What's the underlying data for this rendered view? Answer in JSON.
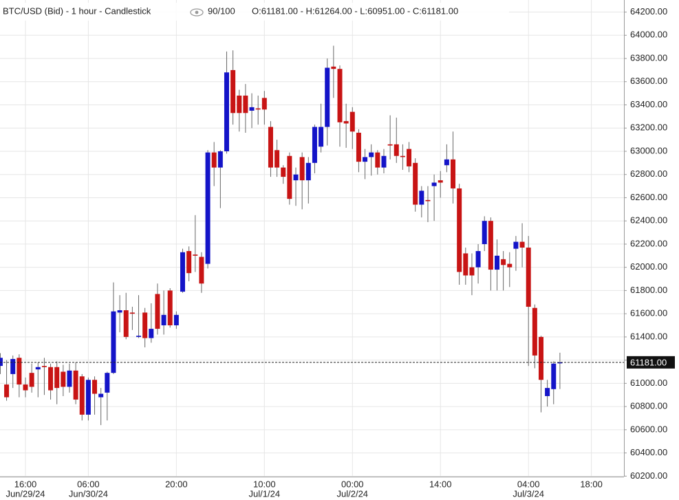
{
  "chart_data": {
    "type": "candlestick",
    "title": "BTC/USD (Bid) - 1 hour - Candlestick",
    "zoom": "90/100",
    "ohlc_text": "O:61181.00 - H:61264.00 - L:60951.00 - C:61181.00",
    "up_color": "#1414c8",
    "down_color": "#c81414",
    "grid": true,
    "categories": [
      null,
      null,
      null,
      null,
      "16:00",
      null,
      null,
      null,
      null,
      null,
      null,
      null,
      null,
      null,
      "06:00",
      null,
      null,
      null,
      null,
      null,
      null,
      null,
      null,
      null,
      null,
      null,
      null,
      null,
      "20:00",
      null,
      null,
      null,
      null,
      null,
      null,
      null,
      null,
      null,
      null,
      null,
      null,
      null,
      "10:00",
      null,
      null,
      null,
      null,
      null,
      null,
      null,
      null,
      null,
      null,
      null,
      null,
      null,
      "00:00",
      null,
      null,
      null,
      null,
      null,
      null,
      null,
      null,
      null,
      null,
      null,
      null,
      null,
      "14:00",
      null,
      null,
      null,
      null,
      null,
      null,
      null,
      null,
      null,
      null,
      null,
      null,
      null,
      "04:00",
      null,
      null,
      null,
      null,
      null,
      null,
      null,
      null,
      null,
      "18:00"
    ],
    "category_dates": [
      null,
      null,
      null,
      null,
      "Jun/29/24",
      null,
      null,
      null,
      null,
      null,
      null,
      null,
      null,
      null,
      "Jun/30/24",
      null,
      null,
      null,
      null,
      null,
      null,
      null,
      null,
      null,
      null,
      null,
      null,
      null,
      null,
      null,
      null,
      null,
      null,
      null,
      null,
      null,
      null,
      null,
      null,
      null,
      null,
      null,
      "Jul/1/24",
      null,
      null,
      null,
      null,
      null,
      null,
      null,
      null,
      null,
      null,
      null,
      null,
      null,
      "Jul/2/24",
      null,
      null,
      null,
      null,
      null,
      null,
      null,
      null,
      null,
      null,
      null,
      null,
      null,
      null,
      null,
      null,
      null,
      null,
      null,
      null,
      null,
      null,
      null,
      null,
      null,
      null,
      null,
      "Jul/3/24",
      null,
      null,
      null,
      null,
      null,
      null,
      null,
      null,
      null,
      null
    ],
    "open": [
      61150,
      60990,
      61080,
      61220,
      60990,
      61090,
      61120,
      61150,
      61140,
      61140,
      61100,
      60970,
      61110,
      61060,
      60730,
      61030,
      60880,
      60920,
      61090,
      61610,
      61630,
      61610,
      61400,
      61610,
      61390,
      61770,
      61500,
      61800,
      61500,
      61790,
      62140,
      62110,
      62090,
      62030,
      62990,
      62860,
      63000,
      63700,
      63480,
      63480,
      63350,
      63370,
      63460,
      63210,
      63010,
      62860,
      62960,
      62750,
      62950,
      62750,
      62900,
      63040,
      63210,
      63730,
      63710,
      63260,
      63340,
      63160,
      62910,
      62950,
      62990,
      62860,
      63060,
      63060,
      62960,
      63020,
      62900,
      62540,
      62580,
      62700,
      62750,
      62880,
      62930,
      62680,
      62120,
      62000,
      62000,
      62200,
      62400,
      61980,
      62070,
      62030,
      62160,
      62220,
      62170,
      61650,
      61400,
      60890,
      60950,
      61181,
      null,
      null,
      null,
      null,
      null
    ],
    "high": [
      61260,
      61200,
      61240,
      61250,
      61050,
      61170,
      61180,
      61220,
      61170,
      61190,
      61160,
      61170,
      61180,
      61080,
      61050,
      61060,
      60960,
      61100,
      61870,
      61760,
      61780,
      61660,
      61760,
      61650,
      61690,
      61860,
      61800,
      61820,
      61620,
      62160,
      62180,
      62450,
      62130,
      63010,
      63080,
      63010,
      63860,
      63870,
      63530,
      63580,
      63500,
      63480,
      63520,
      63260,
      63100,
      62880,
      62990,
      62860,
      62990,
      62950,
      63230,
      63410,
      63800,
      63910,
      63740,
      63410,
      63380,
      63190,
      63020,
      63060,
      63010,
      63020,
      63310,
      63290,
      63060,
      63080,
      62940,
      62700,
      62700,
      62800,
      62830,
      63060,
      63170,
      62720,
      62170,
      62120,
      62200,
      62440,
      62430,
      62240,
      62140,
      62130,
      62270,
      62380,
      62270,
      61680,
      61410,
      61030,
      61190,
      61264,
      null,
      null,
      null,
      null,
      null
    ],
    "low": [
      61080,
      60850,
      60960,
      60880,
      60880,
      60920,
      60880,
      60900,
      60860,
      60820,
      60890,
      60920,
      60820,
      60680,
      60680,
      60730,
      60640,
      60680,
      61080,
      61440,
      61380,
      61460,
      61390,
      61310,
      61350,
      61420,
      61420,
      61480,
      61470,
      61780,
      61880,
      61960,
      61780,
      61990,
      62700,
      62510,
      62980,
      63230,
      63170,
      63160,
      63200,
      63230,
      63230,
      62780,
      62780,
      62720,
      62540,
      62530,
      62500,
      62550,
      62810,
      62990,
      63050,
      63460,
      63040,
      63030,
      63020,
      62820,
      62760,
      62790,
      62800,
      62810,
      62930,
      62900,
      62840,
      62820,
      62480,
      62430,
      62390,
      62400,
      62600,
      62820,
      62550,
      61850,
      61850,
      61760,
      61860,
      62140,
      61800,
      61800,
      61800,
      61830,
      61970,
      62000,
      61150,
      61130,
      60750,
      60800,
      60820,
      60951,
      null,
      null,
      null,
      null,
      null
    ],
    "close": [
      61220,
      60880,
      61210,
      60990,
      60940,
      60970,
      61140,
      61140,
      60940,
      60960,
      60970,
      61110,
      60860,
      60730,
      61030,
      60910,
      60910,
      61090,
      61620,
      61630,
      61400,
      61600,
      61410,
      61390,
      61470,
      61470,
      61590,
      61500,
      61590,
      62130,
      61950,
      62100,
      61860,
      62990,
      62860,
      63000,
      63680,
      63330,
      63330,
      63330,
      63380,
      63360,
      63360,
      62860,
      62860,
      62780,
      62590,
      62800,
      62750,
      62900,
      63210,
      63210,
      63720,
      63710,
      63250,
      63240,
      63170,
      62910,
      62950,
      62990,
      62860,
      62960,
      63050,
      62960,
      62950,
      62870,
      62540,
      62660,
      62570,
      62730,
      62730,
      62930,
      62680,
      61960,
      61930,
      61930,
      62140,
      62400,
      61980,
      62100,
      62020,
      62000,
      62220,
      62170,
      61660,
      61240,
      61030,
      60960,
      61170,
      61181,
      null,
      null,
      null,
      null,
      null
    ],
    "last_price": {
      "value": 61181,
      "label": "61181.00"
    },
    "ylim": [
      60196,
      64304
    ],
    "yticks": [
      {
        "value": 60200,
        "label": "60200.00"
      },
      {
        "value": 60400,
        "label": "60400.00"
      },
      {
        "value": 60600,
        "label": "60600.00"
      },
      {
        "value": 60800,
        "label": "60800.00"
      },
      {
        "value": 61000,
        "label": "61000.00"
      },
      {
        "value": 61200,
        "label": "61200.00"
      },
      {
        "value": 61400,
        "label": "61400.00"
      },
      {
        "value": 61600,
        "label": "61600.00"
      },
      {
        "value": 61800,
        "label": "61800.00"
      },
      {
        "value": 62000,
        "label": "62000.00"
      },
      {
        "value": 62200,
        "label": "62200.00"
      },
      {
        "value": 62400,
        "label": "62400.00"
      },
      {
        "value": 62600,
        "label": "62600.00"
      },
      {
        "value": 62800,
        "label": "62800.00"
      },
      {
        "value": 63000,
        "label": "63000.00"
      },
      {
        "value": 63200,
        "label": "63200.00"
      },
      {
        "value": 63400,
        "label": "63400.00"
      },
      {
        "value": 63600,
        "label": "63600.00"
      },
      {
        "value": 63800,
        "label": "63800.00"
      },
      {
        "value": 64000,
        "label": "64000.00"
      },
      {
        "value": 64200,
        "label": "64200.00"
      }
    ]
  }
}
